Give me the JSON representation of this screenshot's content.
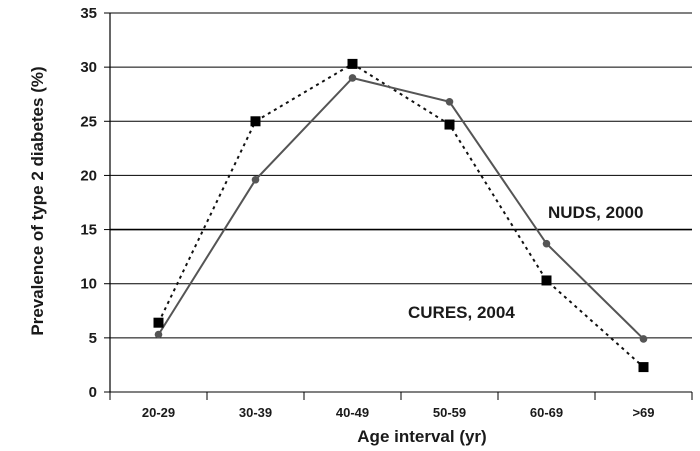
{
  "chart_data": {
    "type": "line",
    "xlabel": "Age interval (yr)",
    "ylabel": "Prevalence of type 2 diabetes (%)",
    "categories": [
      "20-29",
      "30-39",
      "40-49",
      "50-59",
      "60-69",
      ">69"
    ],
    "ylim": [
      0,
      35
    ],
    "yticks": [
      0,
      5,
      10,
      15,
      20,
      25,
      30,
      35
    ],
    "grid": true,
    "series": [
      {
        "name": "NUDS, 2000",
        "marker": "square",
        "line": "dotted",
        "values": [
          6.4,
          25.0,
          30.3,
          24.7,
          10.3,
          2.3
        ]
      },
      {
        "name": "CURES, 2004",
        "marker": "circle",
        "line": "solid",
        "values": [
          5.3,
          19.6,
          29.0,
          26.8,
          13.7,
          4.9
        ]
      }
    ]
  },
  "colors": {
    "line": "#555555",
    "square_marker": "#000000",
    "circle_marker": "#555555",
    "grid": "#000000",
    "text": "#1a1a1a"
  }
}
